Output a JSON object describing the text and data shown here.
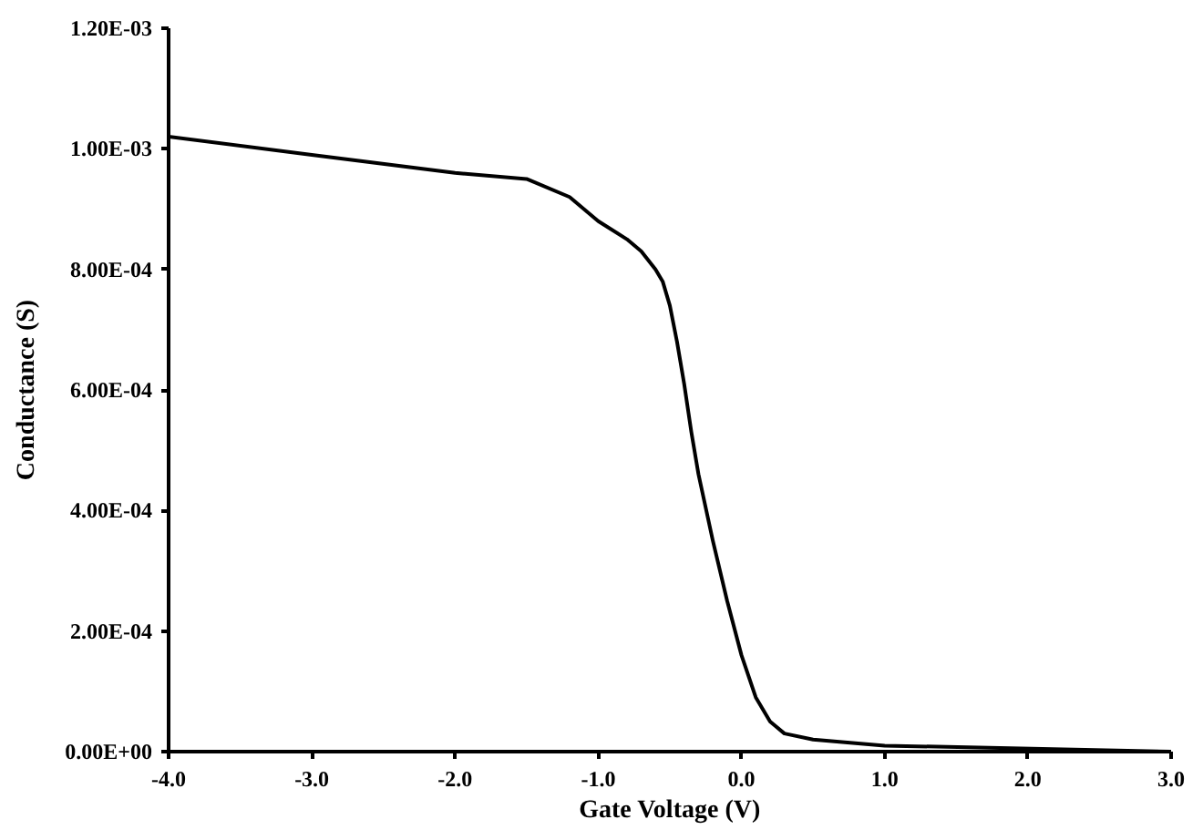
{
  "chart_data": {
    "type": "line",
    "xlabel": "Gate Voltage (V)",
    "ylabel": "Conductance (S)",
    "x": [
      -4.0,
      -3.0,
      -2.0,
      -1.5,
      -1.2,
      -1.0,
      -0.8,
      -0.7,
      -0.6,
      -0.55,
      -0.5,
      -0.45,
      -0.4,
      -0.35,
      -0.3,
      -0.2,
      -0.1,
      0.0,
      0.1,
      0.2,
      0.3,
      0.5,
      1.0,
      3.0
    ],
    "series": [
      {
        "color": "#000000",
        "values": [
          0.00102,
          0.00099,
          0.00096,
          0.00095,
          0.00092,
          0.00088,
          0.00085,
          0.00083,
          0.0008,
          0.00078,
          0.00074,
          0.00068,
          0.00061,
          0.00053,
          0.00046,
          0.00035,
          0.00025,
          0.00016,
          9e-05,
          5e-05,
          3e-05,
          2e-05,
          1e-05,
          0
        ]
      }
    ],
    "xlim": [
      -4,
      3
    ],
    "ylim": [
      0,
      0.0012
    ],
    "xticks": [
      {
        "value": -4,
        "label": "-4.0"
      },
      {
        "value": -3,
        "label": "-3.0"
      },
      {
        "value": -2,
        "label": "-2.0"
      },
      {
        "value": -1,
        "label": "-1.0"
      },
      {
        "value": 0,
        "label": "0.0"
      },
      {
        "value": 1,
        "label": "1.0"
      },
      {
        "value": 2,
        "label": "2.0"
      },
      {
        "value": 3,
        "label": "3.0"
      }
    ],
    "yticks": [
      {
        "value": 0,
        "label": "0.00E+00"
      },
      {
        "value": 0.0002,
        "label": "2.00E-04"
      },
      {
        "value": 0.0004,
        "label": "4.00E-04"
      },
      {
        "value": 0.0006,
        "label": "6.00E-04"
      },
      {
        "value": 0.0008,
        "label": "8.00E-04"
      },
      {
        "value": 0.001,
        "label": "1.00E-03"
      },
      {
        "value": 0.0012,
        "label": "1.20E-03"
      }
    ],
    "line_style": "solid"
  }
}
